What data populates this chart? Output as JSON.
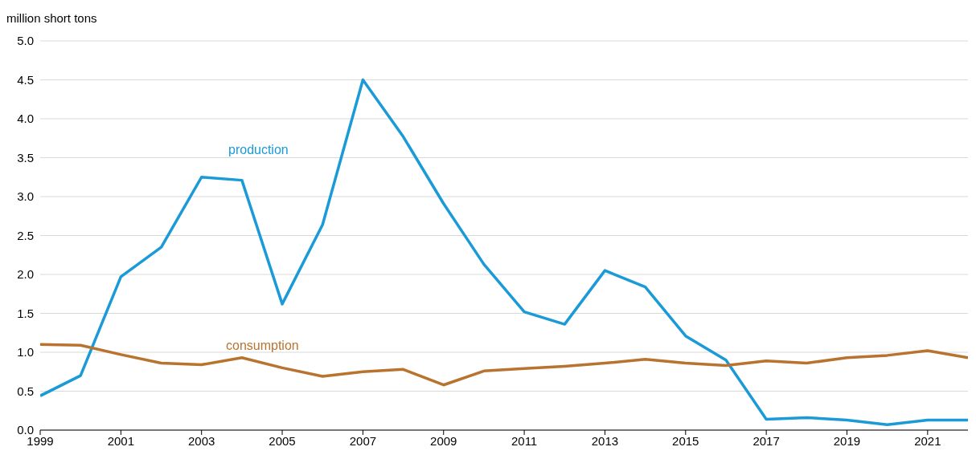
{
  "chart_data": {
    "type": "line",
    "ylabel": "million short tons",
    "x": [
      1999,
      2000,
      2001,
      2002,
      2003,
      2004,
      2005,
      2006,
      2007,
      2008,
      2009,
      2010,
      2011,
      2012,
      2013,
      2014,
      2015,
      2016,
      2017,
      2018,
      2019,
      2020,
      2021,
      2022
    ],
    "series": [
      {
        "name": "production",
        "color": "#1a9ad6",
        "values": [
          0.44,
          0.7,
          1.97,
          2.35,
          3.25,
          3.21,
          1.62,
          2.64,
          4.5,
          3.77,
          2.91,
          2.13,
          1.52,
          1.36,
          2.05,
          1.84,
          1.21,
          0.9,
          0.14,
          0.16,
          0.13,
          0.07,
          0.13,
          0.13
        ]
      },
      {
        "name": "consumption",
        "color": "#b8732f",
        "values": [
          1.1,
          1.09,
          0.97,
          0.86,
          0.84,
          0.93,
          0.8,
          0.69,
          0.75,
          0.78,
          0.58,
          0.76,
          0.79,
          0.82,
          0.86,
          0.91,
          0.86,
          0.83,
          0.89,
          0.86,
          0.93,
          0.96,
          1.02,
          0.93
        ]
      }
    ],
    "xlim": [
      1999,
      2022
    ],
    "xticks": [
      1999,
      2001,
      2003,
      2005,
      2007,
      2009,
      2011,
      2013,
      2015,
      2017,
      2019,
      2021
    ],
    "ylim": [
      0,
      5
    ],
    "yticks": [
      {
        "value": 0,
        "label": "0.0"
      },
      {
        "value": 0.5,
        "label": "0.5"
      },
      {
        "value": 1,
        "label": "1.0"
      },
      {
        "value": 1.5,
        "label": "1.5"
      },
      {
        "value": 2,
        "label": "2.0"
      },
      {
        "value": 2.5,
        "label": "2.5"
      },
      {
        "value": 3,
        "label": "3.0"
      },
      {
        "value": 3.5,
        "label": "3.5"
      },
      {
        "value": 4,
        "label": "4.0"
      },
      {
        "value": 4.5,
        "label": "4.5"
      },
      {
        "value": 5,
        "label": "5.0"
      }
    ],
    "grid": "y",
    "legend": false,
    "marker": "none",
    "line_style": "solid"
  }
}
